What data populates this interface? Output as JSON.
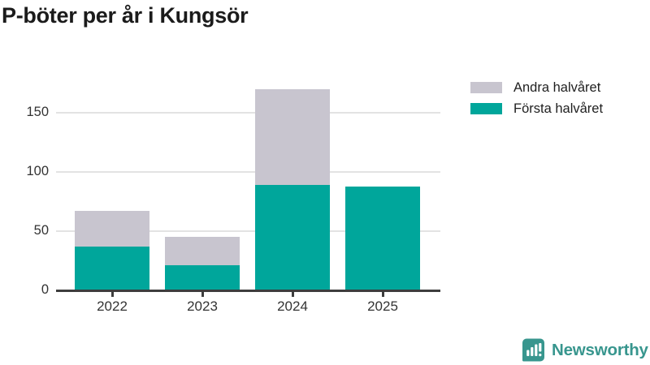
{
  "title": "P-böter per år i Kungsör",
  "legend": {
    "items": [
      {
        "label": "Andra halvåret",
        "color": "#c8c5cf"
      },
      {
        "label": "Första halvåret",
        "color": "#00a69b"
      }
    ]
  },
  "chart_data": {
    "type": "bar",
    "stacked": true,
    "title": "P-böter per år i Kungsör",
    "categories": [
      "2022",
      "2023",
      "2024",
      "2025"
    ],
    "series": [
      {
        "name": "Första halvåret",
        "color": "#00a69b",
        "values": [
          37,
          21,
          89,
          88
        ]
      },
      {
        "name": "Andra halvåret",
        "color": "#c8c5cf",
        "values": [
          30,
          24,
          81,
          0
        ]
      }
    ],
    "totals": [
      67,
      45,
      170,
      88
    ],
    "xlabel": "",
    "ylabel": "",
    "yticks": [
      0,
      50,
      100,
      150
    ],
    "ylim": [
      0,
      187
    ],
    "grid": true,
    "legend_position": "top-right"
  },
  "branding": {
    "logo_text": "Newsworthy",
    "logo_color": "#38968e",
    "logo_icon": "newsworthy-speech-bubble-chart-icon"
  },
  "colors": {
    "first_half": "#00a69b",
    "second_half": "#c8c5cf",
    "gridline": "#e3e3e3",
    "axis": "#3d3d3d",
    "title_text": "#1b1b1b",
    "tick_text": "#333333",
    "background": "#ffffff"
  }
}
